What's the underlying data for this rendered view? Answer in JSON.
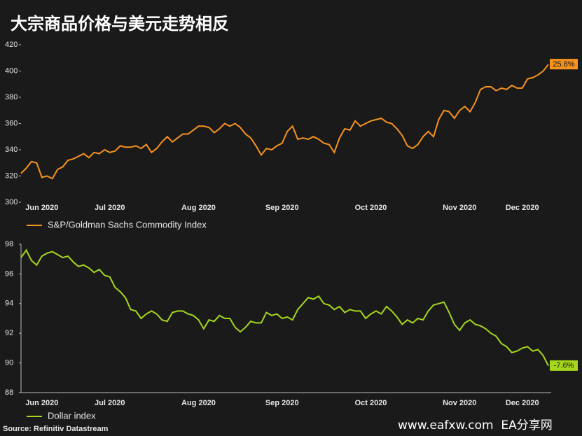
{
  "title": "大宗商品价格与美元走势相反",
  "chart_data": [
    {
      "type": "line",
      "categories": [
        null,
        null,
        null,
        null,
        "Jun 2020",
        null,
        null,
        null,
        null,
        null,
        null,
        null,
        null,
        null,
        null,
        null,
        null,
        "Jul 2020",
        null,
        null,
        null,
        null,
        null,
        null,
        null,
        null,
        null,
        null,
        null,
        null,
        null,
        null,
        null,
        null,
        "Aug 2020",
        null,
        null,
        null,
        null,
        null,
        null,
        null,
        null,
        null,
        null,
        null,
        null,
        null,
        null,
        null,
        "Sep 2020",
        null,
        null,
        null,
        null,
        null,
        null,
        null,
        null,
        null,
        null,
        null,
        null,
        null,
        null,
        null,
        null,
        "Oct 2020",
        null,
        null,
        null,
        null,
        null,
        null,
        null,
        null,
        null,
        null,
        null,
        null,
        null,
        null,
        null,
        null,
        "Nov 2020",
        null,
        null,
        null,
        null,
        null,
        null,
        null,
        null,
        null,
        null,
        null,
        "Dec 2020",
        null,
        null,
        null,
        null,
        null
      ],
      "series": [
        {
          "name": "S&P/Goldman Sachs Commodity Index",
          "color": "#f7931e",
          "values": [
            322,
            326,
            331,
            330,
            319,
            320,
            318,
            325,
            327,
            332,
            333,
            335,
            337,
            334,
            338,
            337,
            340,
            338,
            339,
            343,
            342,
            342,
            343,
            341,
            344,
            338,
            341,
            346,
            350,
            346,
            349,
            352,
            352,
            355,
            358,
            358,
            357,
            353,
            356,
            360,
            358,
            360,
            357,
            352,
            349,
            343,
            336,
            341,
            340,
            343,
            345,
            354,
            358,
            348,
            349,
            348,
            350,
            348,
            345,
            344,
            338,
            349,
            356,
            355,
            362,
            358,
            360,
            362,
            363,
            364,
            361,
            360,
            356,
            351,
            343,
            341,
            344,
            350,
            354,
            350,
            363,
            370,
            369,
            364,
            370,
            373,
            369,
            376,
            386,
            388,
            388,
            385,
            387,
            386,
            389,
            387,
            387,
            394,
            395,
            397,
            400,
            405
          ]
        }
      ],
      "ylim": [
        300,
        420
      ],
      "yticks": [
        300,
        320,
        340,
        360,
        380,
        400,
        420
      ],
      "annotation": "25.8%"
    },
    {
      "type": "line",
      "categories": [
        null,
        null,
        null,
        null,
        "Jun 2020",
        null,
        null,
        null,
        null,
        null,
        null,
        null,
        null,
        null,
        null,
        null,
        null,
        "Jul 2020",
        null,
        null,
        null,
        null,
        null,
        null,
        null,
        null,
        null,
        null,
        null,
        null,
        null,
        null,
        null,
        null,
        "Aug 2020",
        null,
        null,
        null,
        null,
        null,
        null,
        null,
        null,
        null,
        null,
        null,
        null,
        null,
        null,
        null,
        "Sep 2020",
        null,
        null,
        null,
        null,
        null,
        null,
        null,
        null,
        null,
        null,
        null,
        null,
        null,
        null,
        null,
        null,
        "Oct 2020",
        null,
        null,
        null,
        null,
        null,
        null,
        null,
        null,
        null,
        null,
        null,
        null,
        null,
        null,
        null,
        null,
        "Nov 2020",
        null,
        null,
        null,
        null,
        null,
        null,
        null,
        null,
        null,
        null,
        null,
        "Dec 2020",
        null,
        null,
        null,
        null,
        null
      ],
      "series": [
        {
          "name": "Dollar index",
          "color": "#a6d71c",
          "values": [
            97.1,
            97.6,
            96.9,
            96.6,
            97.2,
            97.4,
            97.5,
            97.3,
            97.1,
            97.2,
            96.8,
            96.5,
            96.6,
            96.4,
            96.1,
            96.3,
            95.9,
            95.8,
            95.1,
            94.8,
            94.4,
            93.6,
            93.5,
            93.0,
            93.3,
            93.5,
            93.3,
            92.9,
            92.8,
            93.4,
            93.5,
            93.5,
            93.3,
            93.2,
            92.9,
            92.3,
            92.9,
            92.8,
            93.2,
            93.0,
            93.0,
            92.4,
            92.1,
            92.4,
            92.8,
            92.7,
            92.7,
            93.4,
            93.2,
            93.3,
            93.0,
            93.1,
            92.9,
            93.6,
            94.0,
            94.4,
            94.3,
            94.5,
            94.0,
            93.9,
            93.6,
            93.8,
            93.4,
            93.6,
            93.5,
            93.5,
            93.0,
            93.3,
            93.5,
            93.3,
            93.8,
            93.5,
            93.1,
            92.6,
            92.9,
            92.7,
            93.0,
            92.9,
            93.5,
            93.9,
            94.0,
            94.1,
            93.4,
            92.6,
            92.2,
            92.7,
            92.9,
            92.6,
            92.5,
            92.3,
            92.0,
            91.8,
            91.3,
            91.1,
            90.7,
            90.8,
            91.0,
            91.1,
            90.8,
            90.9,
            90.5,
            89.8
          ]
        }
      ],
      "ylim": [
        88,
        98
      ],
      "yticks": [
        88,
        90,
        92,
        94,
        96,
        98
      ],
      "annotation": "-7.6%"
    }
  ],
  "source": "Source: Refinitiv Datastream",
  "watermark": "www.eafxw.com  EA分享网"
}
